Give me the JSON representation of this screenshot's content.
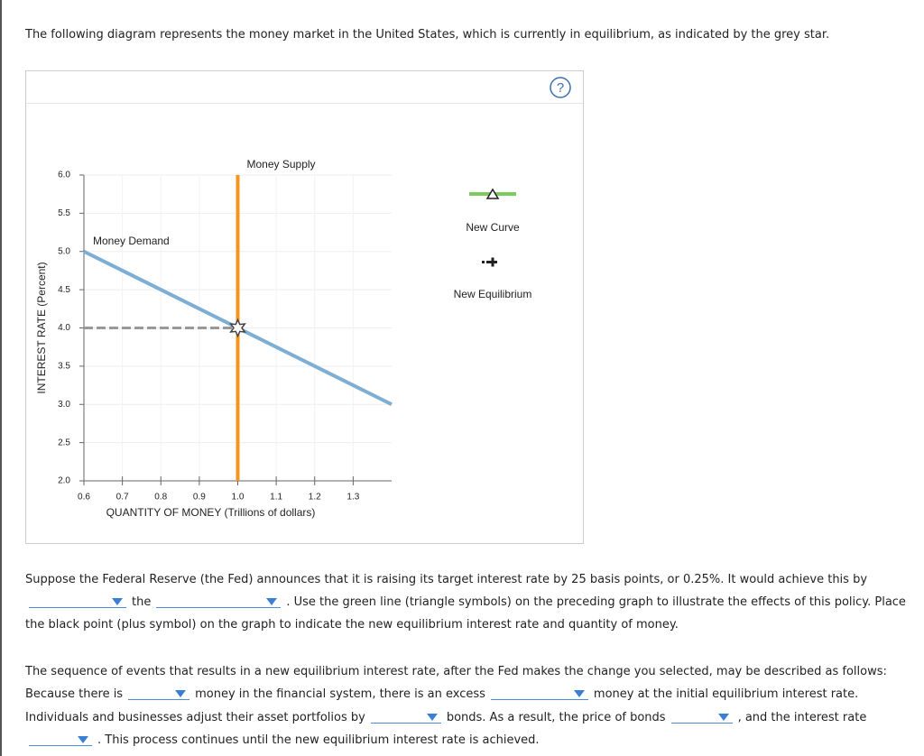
{
  "intro": "The following diagram represents the money market in the United States, which is currently in equilibrium, as indicated by the grey star.",
  "help_icon": "?",
  "chart_data": {
    "type": "line",
    "xlabel": "QUANTITY OF MONEY (Trillions of dollars)",
    "ylabel": "INTEREST RATE (Percent)",
    "xlim": [
      0.6,
      1.4
    ],
    "ylim": [
      2,
      6
    ],
    "xticks": [
      {
        "value": 0.6,
        "label": "0.6"
      },
      {
        "value": 0.7,
        "label": "0.7"
      },
      {
        "value": 0.8,
        "label": "0.8"
      },
      {
        "value": 0.9,
        "label": "0.9"
      },
      {
        "value": 1,
        "label": "1.0"
      },
      {
        "value": 1.1,
        "label": "1.1"
      },
      {
        "value": 1.2,
        "label": "1.2"
      },
      {
        "value": 1.3,
        "label": "1.3"
      }
    ],
    "yticks": [
      {
        "value": 2,
        "label": "2.0"
      },
      {
        "value": 2.5,
        "label": "2.5"
      },
      {
        "value": 3,
        "label": "3.0"
      },
      {
        "value": 3.5,
        "label": "3.5"
      },
      {
        "value": 4,
        "label": "4.0"
      },
      {
        "value": 4.5,
        "label": "4.5"
      },
      {
        "value": 5,
        "label": "5.0"
      },
      {
        "value": 5.5,
        "label": "5.5"
      },
      {
        "value": 6,
        "label": "6.0"
      }
    ],
    "grid": true,
    "series": [
      {
        "name": "Money Demand",
        "color": "#7eaed3",
        "x": [
          0.6,
          1.4
        ],
        "values": [
          5,
          3
        ]
      },
      {
        "name": "Money Supply",
        "color": "#f7941d",
        "x": [
          1,
          1
        ],
        "values": [
          2,
          6
        ]
      }
    ],
    "equilibrium": {
      "x": 1,
      "y": 4,
      "color": "#999999"
    }
  },
  "tools": [
    {
      "name": "New Curve",
      "color": "#7dcb5c"
    },
    {
      "name": "New Equilibrium",
      "color": "#222222"
    }
  ],
  "question": [
    "Suppose the Federal Reserve (the Fed) announces that it is raising its target interest rate by 25 basis points, or 0.25%. It would achieve this by",
    "the",
    ". Use the green line (triangle symbols) on the preceding graph to illustrate the effects of this policy. Place",
    "the black point (plus symbol) on the graph to indicate the new equilibrium interest rate and quantity of money."
  ],
  "sequence_intro": "The sequence of events that results in a new equilibrium interest rate, after the Fed makes the change you selected, may be described as follows:",
  "sequence": [
    "Because there is",
    "money in the financial system, there is an excess",
    "money at the initial equilibrium interest rate.",
    "Individuals and businesses adjust their asset portfolios by",
    "bonds. As a result, the price of bonds",
    ", and the interest rate",
    ". This process continues until the new equilibrium interest rate is achieved."
  ]
}
